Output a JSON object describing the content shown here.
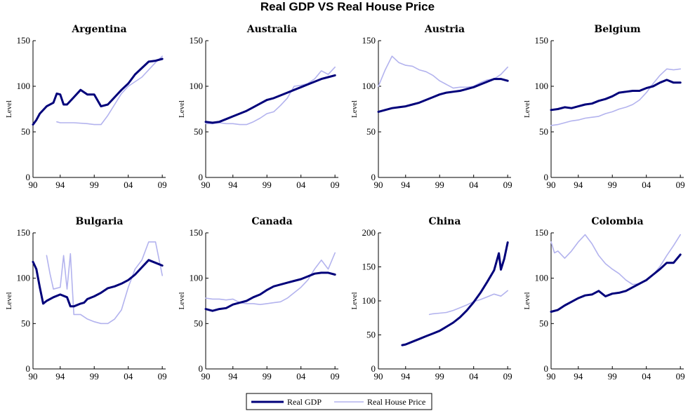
{
  "figure_title": "Real GDP VS Real House Price",
  "colors": {
    "gdp": "#00007a",
    "house": "#b3b3ee",
    "axis": "#000000"
  },
  "legend": {
    "gdp_label": "Real GDP",
    "house_label": "Real House Price",
    "placement": "bottom-center"
  },
  "chart_data": [
    {
      "type": "line",
      "title": "Argentina",
      "ylabel": "Level",
      "xlim": [
        1990,
        2009.5
      ],
      "ylim": [
        0,
        150
      ],
      "xticks": [
        1990,
        1994,
        1999,
        2004,
        2009
      ],
      "xtick_labels": [
        "90",
        "94",
        "99",
        "04",
        "09"
      ],
      "yticks": [
        0,
        50,
        100,
        150
      ],
      "series": [
        {
          "name": "Real GDP",
          "x": [
            1990,
            1990.5,
            1991,
            1992,
            1993,
            1993.5,
            1994,
            1994.5,
            1995,
            1996,
            1997,
            1998,
            1999,
            2000,
            2001,
            2002,
            2003,
            2004,
            2005,
            2006,
            2007,
            2008,
            2009
          ],
          "y": [
            58,
            63,
            70,
            78,
            82,
            92,
            91,
            80,
            80,
            88,
            96,
            91,
            91,
            78,
            80,
            88,
            96,
            103,
            113,
            120,
            127,
            128,
            130
          ]
        },
        {
          "name": "Real House Price",
          "x": [
            1993.5,
            1994,
            1996,
            1998,
            1999,
            2000,
            2001,
            2002,
            2003,
            2004,
            2005,
            2006,
            2007,
            2008,
            2009
          ],
          "y": [
            61,
            60,
            60,
            59,
            58,
            58,
            68,
            80,
            92,
            100,
            105,
            110,
            118,
            126,
            133
          ]
        }
      ]
    },
    {
      "type": "line",
      "title": "Australia",
      "ylabel": "Level",
      "xlim": [
        1990,
        2009.5
      ],
      "ylim": [
        0,
        150
      ],
      "xticks": [
        1990,
        1994,
        1999,
        2004,
        2009
      ],
      "xtick_labels": [
        "90",
        "94",
        "99",
        "04",
        "09"
      ],
      "yticks": [
        0,
        50,
        100,
        150
      ],
      "series": [
        {
          "name": "Real GDP",
          "x": [
            1990,
            1991,
            1992,
            1993,
            1994,
            1995,
            1996,
            1997,
            1998,
            1999,
            2000,
            2001,
            2002,
            2003,
            2004,
            2005,
            2006,
            2007,
            2008,
            2009
          ],
          "y": [
            61,
            60,
            61,
            64,
            67,
            70,
            73,
            77,
            81,
            85,
            87,
            90,
            93,
            96,
            99,
            102,
            105,
            108,
            110,
            112
          ]
        },
        {
          "name": "Real House Price",
          "x": [
            1990,
            1991,
            1992,
            1993,
            1994,
            1995,
            1996,
            1997,
            1998,
            1999,
            2000,
            2001,
            2002,
            2003,
            2004,
            2005,
            2006,
            2007,
            2008,
            2009
          ],
          "y": [
            59,
            59,
            60,
            59,
            59,
            58,
            58,
            61,
            65,
            70,
            72,
            79,
            87,
            100,
            101,
            103,
            108,
            117,
            113,
            121
          ]
        }
      ]
    },
    {
      "type": "line",
      "title": "Austria",
      "ylabel": "Level",
      "xlim": [
        1990,
        2009.5
      ],
      "ylim": [
        0,
        150
      ],
      "xticks": [
        1990,
        1994,
        1999,
        2004,
        2009
      ],
      "xtick_labels": [
        "90",
        "94",
        "99",
        "04",
        "09"
      ],
      "yticks": [
        0,
        50,
        100,
        150
      ],
      "series": [
        {
          "name": "Real GDP",
          "x": [
            1990,
            1991,
            1992,
            1993,
            1994,
            1995,
            1996,
            1997,
            1998,
            1999,
            2000,
            2001,
            2002,
            2003,
            2004,
            2005,
            2006,
            2007,
            2008,
            2009
          ],
          "y": [
            72,
            74,
            76,
            77,
            78,
            80,
            82,
            85,
            88,
            91,
            93,
            94,
            95,
            97,
            99,
            102,
            105,
            108,
            108,
            106
          ]
        },
        {
          "name": "Real House Price",
          "x": [
            1990,
            1991,
            1992,
            1993,
            1994,
            1995,
            1996,
            1997,
            1998,
            1999,
            2000,
            2001,
            2002,
            2003,
            2004,
            2005,
            2006,
            2007,
            2008,
            2009
          ],
          "y": [
            100,
            118,
            133,
            126,
            123,
            122,
            118,
            116,
            112,
            106,
            102,
            98,
            99,
            99,
            100,
            104,
            107,
            108,
            113,
            121
          ]
        }
      ]
    },
    {
      "type": "line",
      "title": "Belgium",
      "ylabel": "Level",
      "xlim": [
        1990,
        2009.5
      ],
      "ylim": [
        0,
        150
      ],
      "xticks": [
        1990,
        1994,
        1999,
        2004,
        2009
      ],
      "xtick_labels": [
        "90",
        "94",
        "99",
        "04",
        "09"
      ],
      "yticks": [
        0,
        50,
        100,
        150
      ],
      "series": [
        {
          "name": "Real GDP",
          "x": [
            1990,
            1991,
            1992,
            1993,
            1994,
            1995,
            1996,
            1997,
            1998,
            1999,
            2000,
            2001,
            2002,
            2003,
            2004,
            2005,
            2006,
            2007,
            2008,
            2009
          ],
          "y": [
            74,
            75,
            77,
            76,
            78,
            80,
            81,
            84,
            86,
            89,
            93,
            94,
            95,
            95,
            98,
            100,
            104,
            107,
            104,
            104
          ]
        },
        {
          "name": "Real House Price",
          "x": [
            1990,
            1991,
            1992,
            1993,
            1994,
            1995,
            1996,
            1997,
            1998,
            1999,
            2000,
            2001,
            2002,
            2003,
            2004,
            2005,
            2006,
            2007,
            2008,
            2009
          ],
          "y": [
            57,
            58,
            60,
            62,
            63,
            65,
            66,
            67,
            70,
            72,
            75,
            77,
            80,
            85,
            93,
            103,
            112,
            119,
            118,
            119
          ]
        }
      ]
    },
    {
      "type": "line",
      "title": "Bulgaria",
      "ylabel": "Level",
      "xlim": [
        1990,
        2009.5
      ],
      "ylim": [
        0,
        150
      ],
      "xticks": [
        1990,
        1994,
        1999,
        2004,
        2009
      ],
      "xtick_labels": [
        "90",
        "94",
        "99",
        "04",
        "09"
      ],
      "yticks": [
        0,
        50,
        100,
        150
      ],
      "series": [
        {
          "name": "Real GDP",
          "x": [
            1990,
            1990.5,
            1991,
            1991.5,
            1992,
            1993,
            1994,
            1995,
            1995.5,
            1996,
            1997,
            1997.5,
            1998,
            1999,
            2000,
            2001,
            2002,
            2003,
            2004,
            2005,
            2006,
            2007,
            2008,
            2009
          ],
          "y": [
            118,
            110,
            90,
            72,
            75,
            79,
            82,
            79,
            69,
            69,
            72,
            73,
            77,
            80,
            84,
            89,
            91,
            94,
            98,
            104,
            112,
            120,
            117,
            114
          ]
        },
        {
          "name": "Real House Price",
          "x": [
            1992,
            1992.5,
            1993,
            1994,
            1994.5,
            1995,
            1995.5,
            1996,
            1997,
            1998,
            1999,
            2000,
            2001,
            2002,
            2003,
            2004,
            2005,
            2006,
            2007,
            2008,
            2009
          ],
          "y": [
            125,
            105,
            88,
            90,
            125,
            88,
            127,
            60,
            60,
            55,
            52,
            50,
            50,
            55,
            65,
            90,
            110,
            120,
            140,
            140,
            103
          ]
        }
      ]
    },
    {
      "type": "line",
      "title": "Canada",
      "ylabel": "Level",
      "xlim": [
        1990,
        2009.5
      ],
      "ylim": [
        0,
        150
      ],
      "xticks": [
        1990,
        1994,
        1999,
        2004,
        2009
      ],
      "xtick_labels": [
        "90",
        "94",
        "99",
        "04",
        "09"
      ],
      "yticks": [
        0,
        50,
        100,
        150
      ],
      "series": [
        {
          "name": "Real GDP",
          "x": [
            1990,
            1991,
            1992,
            1993,
            1994,
            1995,
            1996,
            1997,
            1998,
            1999,
            2000,
            2001,
            2002,
            2003,
            2004,
            2005,
            2006,
            2007,
            2008,
            2009
          ],
          "y": [
            66,
            64,
            66,
            67,
            71,
            73,
            75,
            79,
            82,
            87,
            91,
            93,
            95,
            97,
            99,
            102,
            105,
            106,
            106,
            104
          ]
        },
        {
          "name": "Real House Price",
          "x": [
            1990,
            1991,
            1992,
            1993,
            1994,
            1995,
            1996,
            1997,
            1998,
            1999,
            2000,
            2001,
            2002,
            2003,
            2004,
            2005,
            2006,
            2007,
            2008,
            2009
          ],
          "y": [
            78,
            77,
            77,
            76,
            77,
            73,
            72,
            72,
            71,
            72,
            73,
            74,
            78,
            84,
            90,
            98,
            110,
            120,
            110,
            128
          ]
        }
      ]
    },
    {
      "type": "line",
      "title": "China",
      "ylabel": "Level",
      "xlim": [
        1990,
        2009.5
      ],
      "ylim": [
        0,
        200
      ],
      "xticks": [
        1990,
        1994,
        1999,
        2004,
        2009
      ],
      "xtick_labels": [
        "90",
        "94",
        "99",
        "04",
        "09"
      ],
      "yticks": [
        0,
        50,
        100,
        150,
        200
      ],
      "series": [
        {
          "name": "Real GDP",
          "x": [
            1993.5,
            1994,
            1995,
            1996,
            1997,
            1998,
            1999,
            2000,
            2001,
            2002,
            2003,
            2004,
            2005,
            2006,
            2007,
            2007.7,
            2008,
            2008.5,
            2009
          ],
          "y": [
            35,
            36,
            40,
            44,
            48,
            52,
            56,
            62,
            68,
            76,
            86,
            98,
            112,
            128,
            145,
            170,
            146,
            162,
            186
          ]
        },
        {
          "name": "Real House Price",
          "x": [
            1997.5,
            1998,
            1999,
            2000,
            2001,
            2002,
            2003,
            2004,
            2005,
            2006,
            2007,
            2008,
            2009
          ],
          "y": [
            80,
            81,
            82,
            83,
            86,
            90,
            94,
            99,
            102,
            106,
            110,
            107,
            115
          ]
        }
      ]
    },
    {
      "type": "line",
      "title": "Colombia",
      "ylabel": "Level",
      "xlim": [
        1990,
        2009.5
      ],
      "ylim": [
        0,
        150
      ],
      "xticks": [
        1990,
        1994,
        1999,
        2004,
        2009
      ],
      "xtick_labels": [
        "90",
        "94",
        "99",
        "04",
        "09"
      ],
      "yticks": [
        0,
        50,
        100,
        150
      ],
      "series": [
        {
          "name": "Real GDP",
          "x": [
            1990,
            1991,
            1992,
            1993,
            1994,
            1995,
            1996,
            1997,
            1998,
            1999,
            2000,
            2001,
            2002,
            2003,
            2004,
            2005,
            2006,
            2007,
            2008,
            2009
          ],
          "y": [
            63,
            65,
            70,
            74,
            78,
            81,
            82,
            86,
            80,
            83,
            84,
            86,
            90,
            94,
            98,
            104,
            110,
            117,
            117,
            126
          ]
        },
        {
          "name": "Real House Price",
          "x": [
            1990,
            1990.5,
            1991,
            1992,
            1993,
            1994,
            1995,
            1996,
            1997,
            1998,
            1999,
            2000,
            2001,
            2002,
            2003,
            2004,
            2005,
            2006,
            2007,
            2008,
            2009
          ],
          "y": [
            140,
            128,
            130,
            122,
            130,
            140,
            148,
            138,
            125,
            116,
            110,
            105,
            98,
            93,
            94,
            97,
            104,
            113,
            125,
            136,
            148
          ]
        }
      ]
    }
  ]
}
